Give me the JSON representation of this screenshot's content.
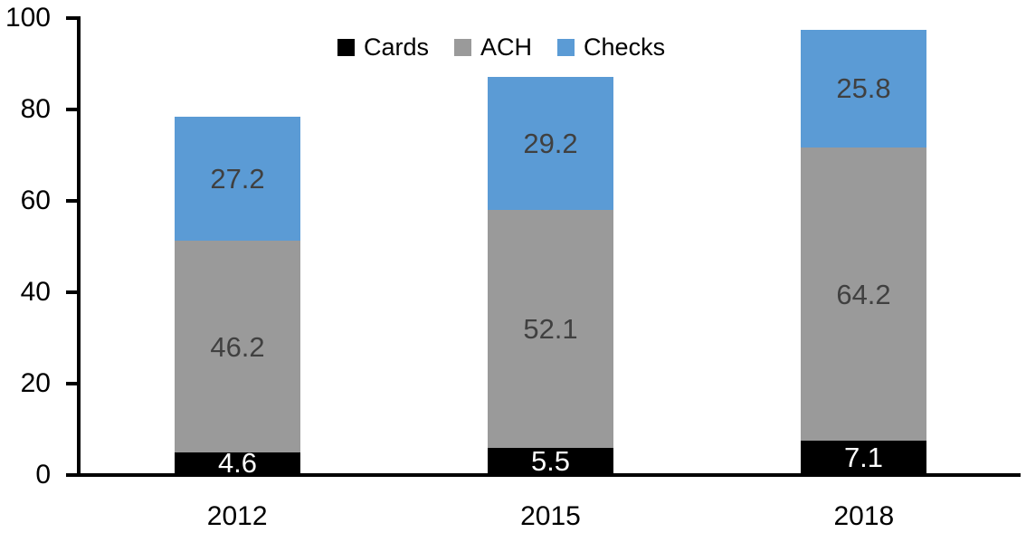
{
  "chart_data": {
    "type": "bar",
    "stacked": true,
    "title": "",
    "xlabel": "",
    "ylabel": "",
    "categories": [
      "2012",
      "2015",
      "2018"
    ],
    "series": [
      {
        "name": "Cards",
        "color": "#000000",
        "label_color": "#ffffff",
        "values": [
          4.6,
          5.5,
          7.1
        ]
      },
      {
        "name": "ACH",
        "color": "#9a9a9a",
        "label_color": "#404040",
        "values": [
          46.2,
          52.1,
          64.2
        ]
      },
      {
        "name": "Checks",
        "color": "#5b9bd5",
        "label_color": "#404040",
        "values": [
          27.2,
          29.2,
          25.8
        ]
      }
    ],
    "totals": [
      78.0,
      86.8,
      97.1
    ],
    "ylim": [
      0,
      100
    ],
    "yticks": [
      0,
      20,
      40,
      60,
      80,
      100
    ],
    "grid": false,
    "legend_position": "top",
    "legend_labels": [
      "Cards",
      "ACH",
      "Checks"
    ],
    "axis_color": "#000000",
    "background_color": "#ffffff"
  }
}
